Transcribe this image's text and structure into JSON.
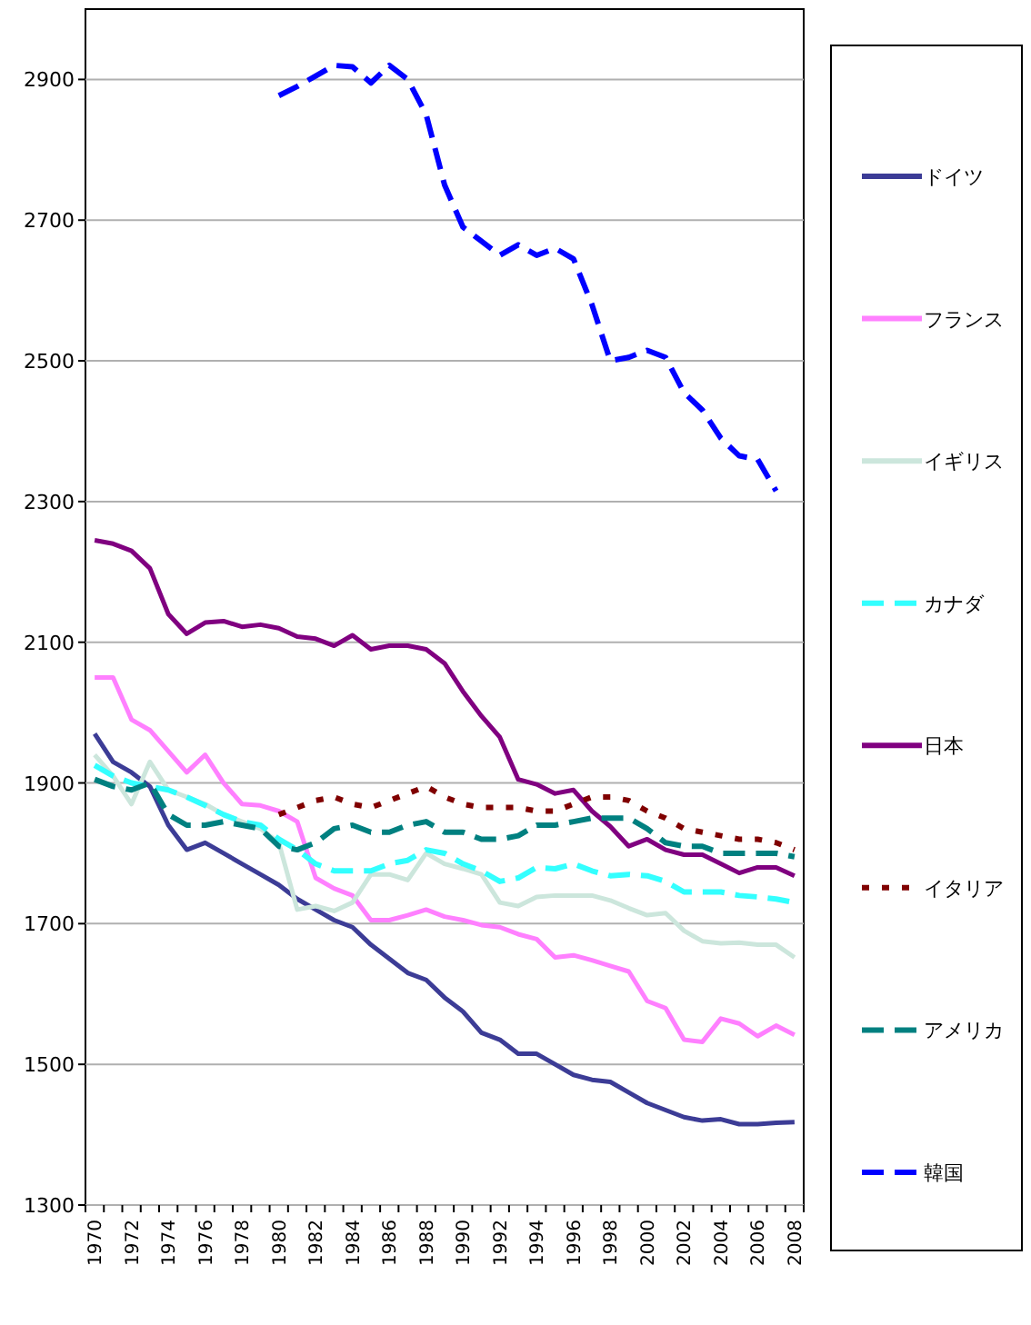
{
  "chart_data": {
    "type": "line",
    "categories": [
      "1970",
      null,
      "1972",
      null,
      "1974",
      null,
      "1976",
      null,
      "1978",
      null,
      "1980",
      null,
      "1982",
      null,
      "1984",
      null,
      "1986",
      null,
      "1988",
      null,
      "1990",
      null,
      "1992",
      null,
      "1994",
      null,
      "1996",
      null,
      "1998",
      null,
      "2000",
      null,
      "2002",
      null,
      "2004",
      null,
      "2006",
      null,
      "2008"
    ],
    "ylim": [
      1300,
      3000
    ],
    "yticks": [
      1300,
      1500,
      1700,
      1900,
      2100,
      2300,
      2500,
      2700,
      2900
    ],
    "grid": "y",
    "legend": "right",
    "marker": "none",
    "series": [
      {
        "name": "ドイツ",
        "color": "#3c3c96",
        "line_style": "solid",
        "values": [
          1970,
          1930,
          1915,
          1895,
          1840,
          1805,
          1815,
          1800,
          1785,
          1770,
          1755,
          1735,
          1720,
          1705,
          1695,
          1670,
          1650,
          1630,
          1620,
          1595,
          1575,
          1545,
          1535,
          1515,
          1515,
          1500,
          1485,
          1478,
          1475,
          1460,
          1445,
          1435,
          1425,
          1420,
          1422,
          1415,
          1415,
          1417,
          1418
        ]
      },
      {
        "name": "フランス",
        "color": "#ff80ff",
        "line_style": "solid",
        "values": [
          2050,
          2050,
          1990,
          1975,
          1945,
          1915,
          1940,
          1900,
          1870,
          1868,
          1860,
          1845,
          1765,
          1750,
          1740,
          1705,
          1705,
          1712,
          1720,
          1710,
          1705,
          1698,
          1695,
          1685,
          1678,
          1652,
          1655,
          1648,
          1640,
          1632,
          1590,
          1580,
          1535,
          1532,
          1565,
          1558,
          1540,
          1555,
          1542
        ]
      },
      {
        "name": "イギリス",
        "color": "#cce6dc",
        "line_style": "solid",
        "values": [
          1940,
          1910,
          1870,
          1930,
          1890,
          1880,
          1870,
          1855,
          1845,
          1835,
          1815,
          1720,
          1725,
          1718,
          1730,
          1770,
          1770,
          1762,
          1800,
          1785,
          1778,
          1770,
          1730,
          1725,
          1738,
          1740,
          1740,
          1740,
          1733,
          1722,
          1712,
          1715,
          1690,
          1675,
          1672,
          1673,
          1670,
          1670,
          1652
        ]
      },
      {
        "name": "カナダ",
        "color": "#33ffff",
        "line_style": "dashed",
        "values": [
          1925,
          1910,
          1900,
          1895,
          1890,
          1880,
          1868,
          1855,
          1845,
          1840,
          1820,
          1805,
          1785,
          1775,
          1775,
          1775,
          1785,
          1790,
          1805,
          1800,
          1785,
          1775,
          1760,
          1765,
          1780,
          1778,
          1785,
          1775,
          1768,
          1770,
          1768,
          1760,
          1745,
          1745,
          1745,
          1740,
          1738,
          1735,
          1730
        ]
      },
      {
        "name": "日本",
        "color": "#800080",
        "line_style": "solid",
        "values": [
          2245,
          2240,
          2230,
          2205,
          2140,
          2112,
          2128,
          2130,
          2122,
          2125,
          2120,
          2108,
          2105,
          2095,
          2110,
          2090,
          2095,
          2095,
          2090,
          2070,
          2030,
          1995,
          1965,
          1905,
          1898,
          1885,
          1890,
          1860,
          1838,
          1810,
          1820,
          1805,
          1798,
          1798,
          1785,
          1772,
          1780,
          1780,
          1768
        ]
      },
      {
        "name": "イタリア",
        "color": "#800000",
        "line_style": "dotted",
        "values": [
          null,
          null,
          null,
          null,
          null,
          null,
          null,
          null,
          null,
          null,
          1855,
          1865,
          1875,
          1880,
          1870,
          1865,
          1875,
          1885,
          1895,
          1880,
          1870,
          1865,
          1865,
          1865,
          1860,
          1860,
          1870,
          1880,
          1880,
          1875,
          1860,
          1850,
          1835,
          1830,
          1825,
          1820,
          1820,
          1815,
          1805
        ]
      },
      {
        "name": "アメリカ",
        "color": "#008080",
        "line_style": "dashed",
        "values": [
          1905,
          1895,
          1890,
          1900,
          1855,
          1840,
          1840,
          1845,
          1840,
          1835,
          1810,
          1805,
          1815,
          1835,
          1840,
          1830,
          1830,
          1840,
          1845,
          1830,
          1830,
          1820,
          1820,
          1825,
          1840,
          1840,
          1845,
          1850,
          1850,
          1850,
          1835,
          1815,
          1810,
          1810,
          1800,
          1800,
          1800,
          1800,
          1795
        ]
      },
      {
        "name": "韓国",
        "color": "#0000ff",
        "line_style": "dashed",
        "values": [
          null,
          null,
          null,
          null,
          null,
          null,
          null,
          null,
          null,
          null,
          2877,
          2890,
          2905,
          2920,
          2918,
          2895,
          2920,
          2900,
          2850,
          2750,
          2690,
          2670,
          2650,
          2665,
          2650,
          2660,
          2645,
          2580,
          2500,
          2505,
          2515,
          2505,
          2455,
          2430,
          2390,
          2365,
          2360,
          2315,
          null
        ]
      }
    ]
  }
}
